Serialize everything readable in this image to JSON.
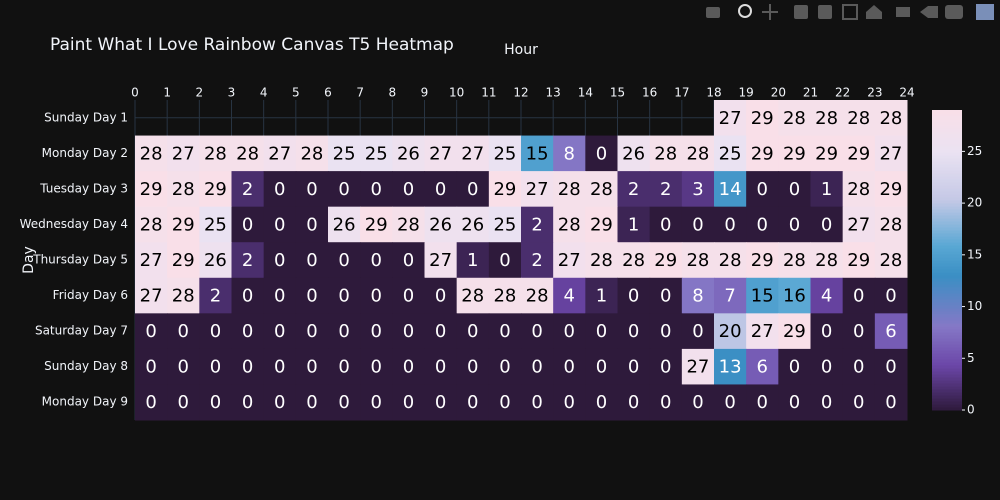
{
  "chart_data": {
    "type": "heatmap",
    "title": "Paint What I Love  Rainbow Canvas T5 Heatmap",
    "xlabel": "Hour",
    "ylabel": "Day",
    "xlim": [
      0,
      24
    ],
    "xticks": [
      0,
      1,
      2,
      3,
      4,
      5,
      6,
      7,
      8,
      9,
      10,
      11,
      12,
      13,
      14,
      15,
      16,
      17,
      18,
      19,
      20,
      21,
      22,
      23,
      24
    ],
    "categories": [
      "Sunday Day 1",
      "Monday Day 2",
      "Tuesday Day 3",
      "Wednesday Day 4",
      "Thursday Day 5",
      "Friday Day 6",
      "Saturday Day 7",
      "Sunday Day 8",
      "Monday Day 9"
    ],
    "z": [
      [
        null,
        null,
        null,
        null,
        null,
        null,
        null,
        null,
        null,
        null,
        null,
        null,
        null,
        null,
        null,
        null,
        null,
        null,
        27,
        29,
        28,
        28,
        28,
        28
      ],
      [
        28,
        27,
        28,
        28,
        27,
        28,
        25,
        25,
        26,
        27,
        27,
        25,
        15,
        8,
        0,
        26,
        28,
        28,
        25,
        29,
        29,
        29,
        29,
        27
      ],
      [
        29,
        28,
        29,
        2,
        0,
        0,
        0,
        0,
        0,
        0,
        0,
        29,
        27,
        28,
        28,
        2,
        2,
        3,
        14,
        0,
        0,
        1,
        28,
        29
      ],
      [
        28,
        29,
        25,
        0,
        0,
        0,
        26,
        29,
        28,
        26,
        26,
        25,
        2,
        28,
        29,
        1,
        0,
        0,
        0,
        0,
        0,
        0,
        27,
        28
      ],
      [
        27,
        29,
        26,
        2,
        0,
        0,
        0,
        0,
        0,
        27,
        1,
        0,
        2,
        27,
        28,
        28,
        29,
        28,
        28,
        29,
        28,
        28,
        29,
        28
      ],
      [
        27,
        28,
        2,
        0,
        0,
        0,
        0,
        0,
        0,
        0,
        28,
        28,
        28,
        4,
        1,
        0,
        0,
        8,
        7,
        15,
        16,
        4,
        0,
        0
      ],
      [
        0,
        0,
        0,
        0,
        0,
        0,
        0,
        0,
        0,
        0,
        0,
        0,
        0,
        0,
        0,
        0,
        0,
        0,
        20,
        27,
        29,
        0,
        0,
        6
      ],
      [
        0,
        0,
        0,
        0,
        0,
        0,
        0,
        0,
        0,
        0,
        0,
        0,
        0,
        0,
        0,
        0,
        0,
        27,
        13,
        6,
        0,
        0,
        0,
        0
      ],
      [
        0,
        0,
        0,
        0,
        0,
        0,
        0,
        0,
        0,
        0,
        0,
        0,
        0,
        0,
        0,
        0,
        0,
        0,
        0,
        0,
        0,
        0,
        0,
        0
      ]
    ],
    "zlim": [
      0,
      29
    ],
    "colorbar_ticks": [
      0,
      5,
      10,
      15,
      20,
      25
    ],
    "colorscale": [
      [
        0,
        "#2e1a3b"
      ],
      [
        0.15,
        "#6b46a8"
      ],
      [
        0.28,
        "#8578c6"
      ],
      [
        0.45,
        "#3a8fc4"
      ],
      [
        0.55,
        "#5aa8d4"
      ],
      [
        0.7,
        "#c4c8e6"
      ],
      [
        0.86,
        "#eae2f2"
      ],
      [
        1,
        "#f9dfe8"
      ]
    ],
    "grid": true
  }
}
